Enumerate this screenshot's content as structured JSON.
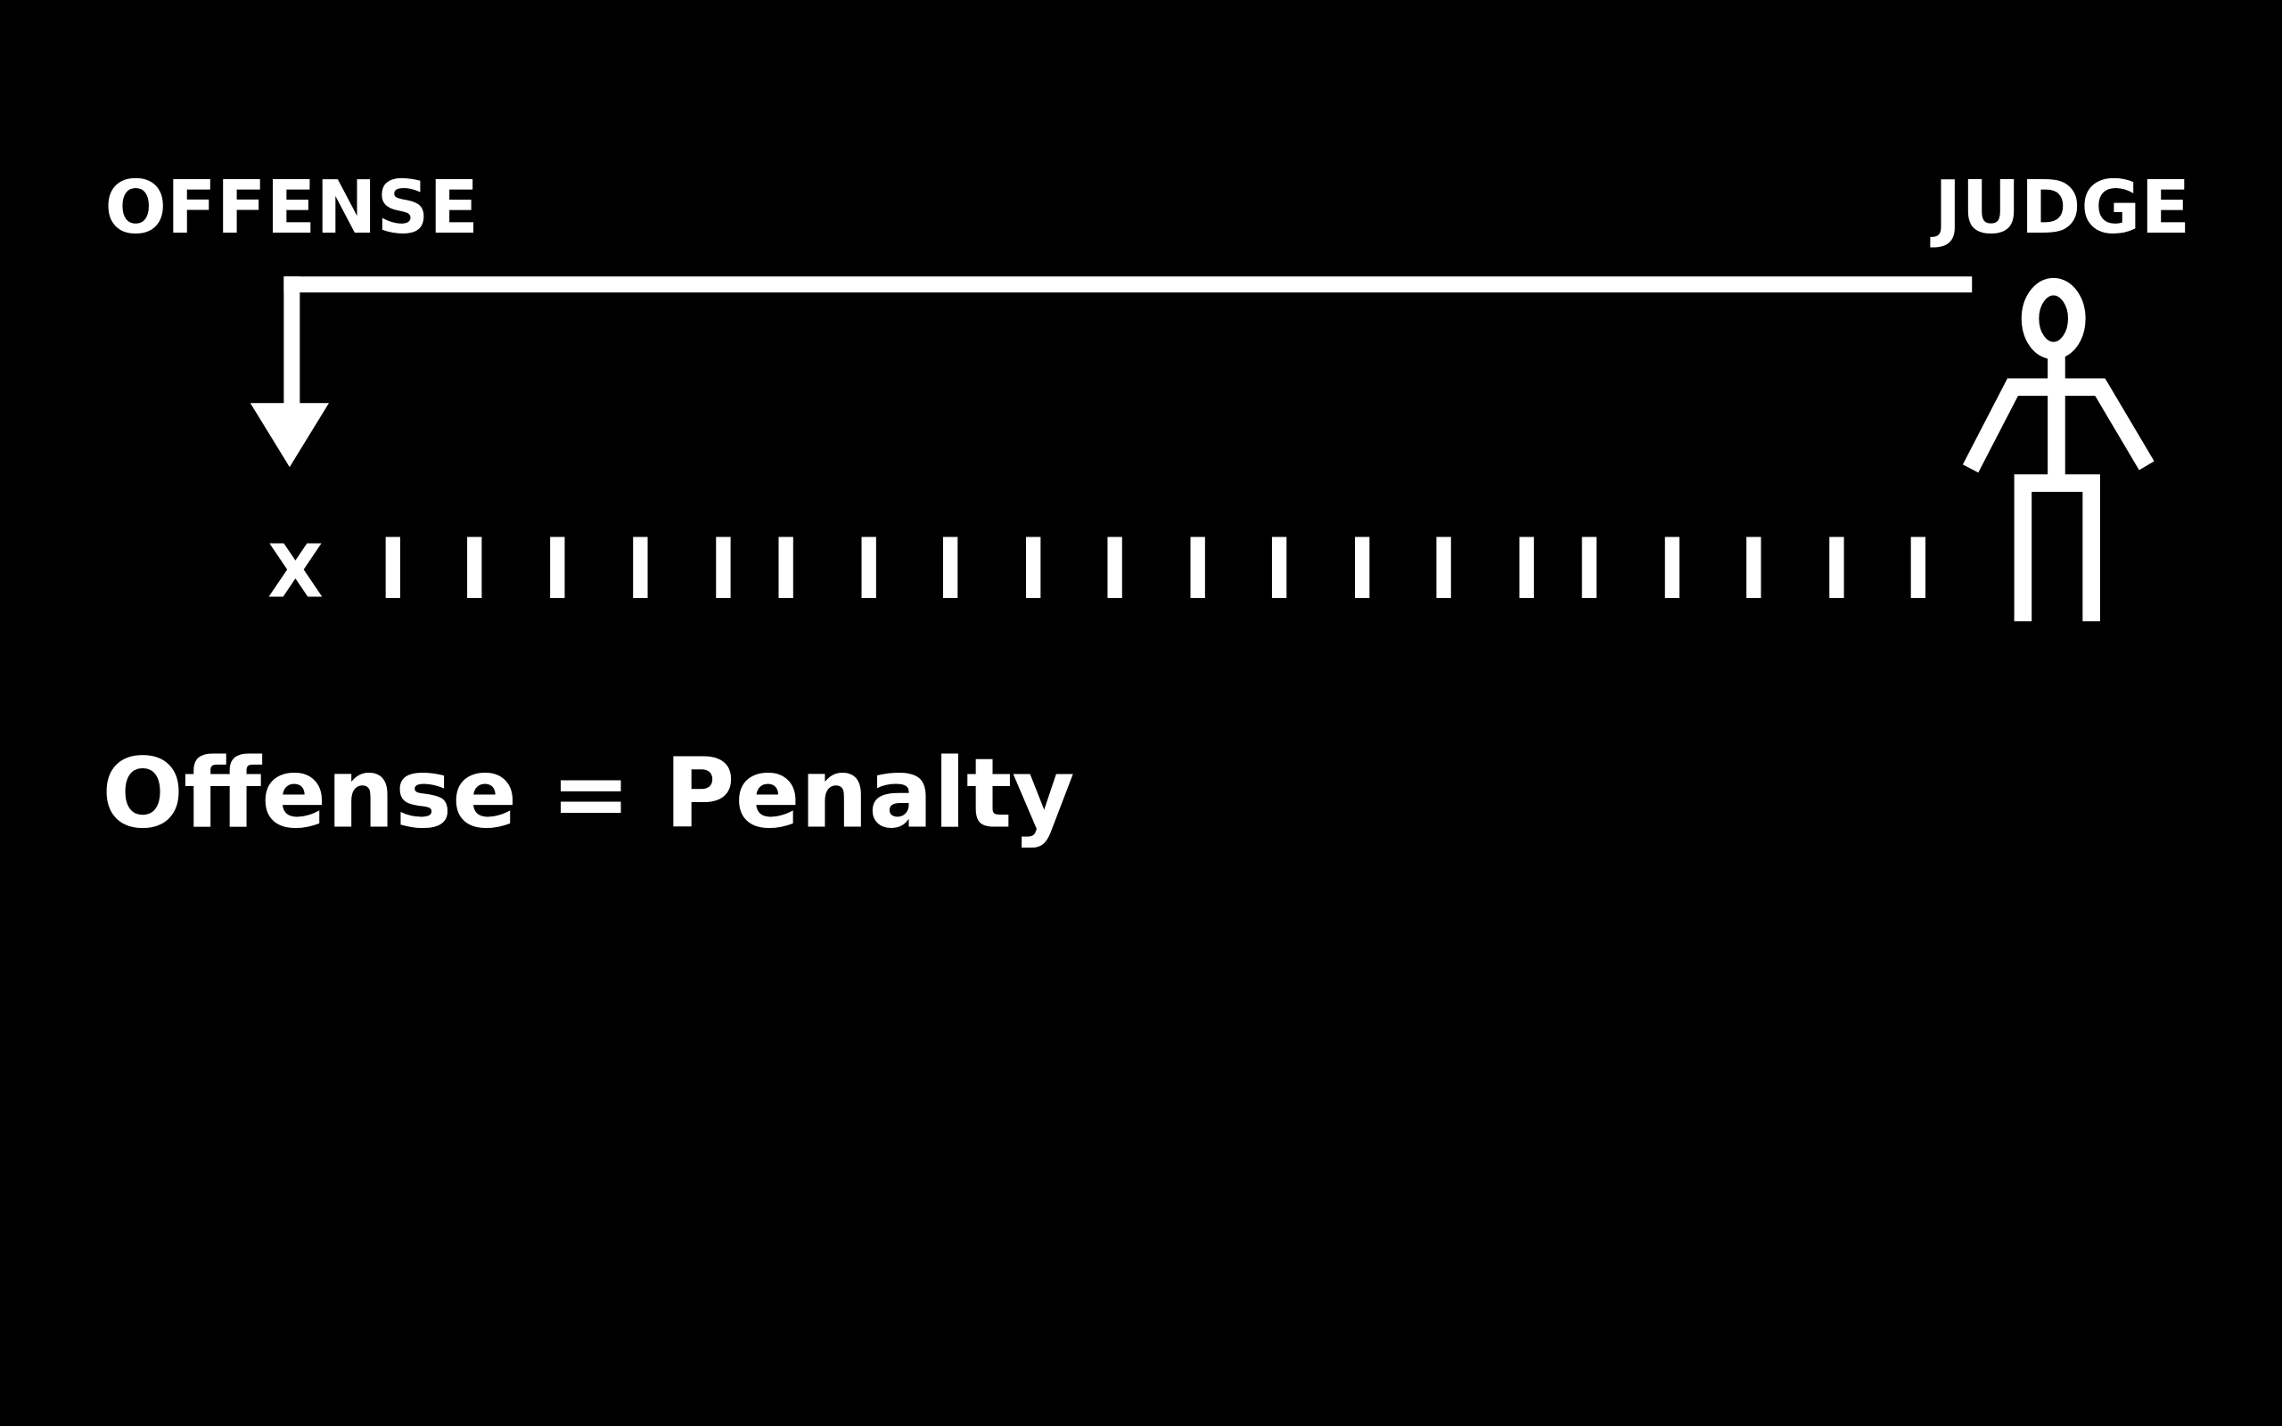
{
  "diagram": {
    "left_label": "OFFENSE",
    "right_label": "JUDGE",
    "start_marker": "X",
    "equation": "Offense = Penalty",
    "colors": {
      "background": "#000000",
      "foreground": "#ffffff"
    },
    "icons": {
      "arrow": "arrow-down-icon",
      "figure": "stick-figure-icon"
    }
  }
}
